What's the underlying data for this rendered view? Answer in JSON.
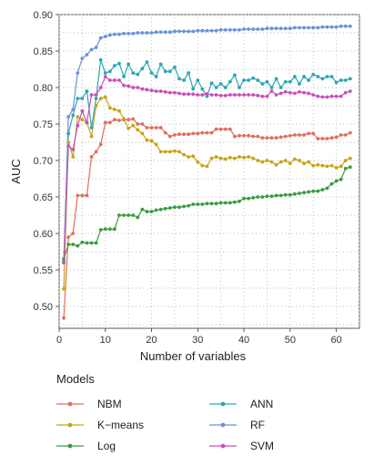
{
  "chart_data": {
    "type": "line",
    "xlabel": "Number of variables",
    "ylabel": "AUC",
    "xlim": [
      0,
      65
    ],
    "ylim": [
      0.47,
      0.9
    ],
    "x_ticks": [
      0,
      10,
      20,
      30,
      40,
      50,
      60
    ],
    "y_ticks": [
      0.5,
      0.55,
      0.6,
      0.65,
      0.7,
      0.75,
      0.8,
      0.85,
      0.9
    ],
    "grid": "dotted",
    "legend_title": "Models",
    "legend_position": "bottom",
    "x": [
      1,
      2,
      3,
      4,
      5,
      6,
      7,
      8,
      9,
      10,
      11,
      12,
      13,
      14,
      15,
      16,
      17,
      18,
      19,
      20,
      21,
      22,
      23,
      24,
      25,
      26,
      27,
      28,
      29,
      30,
      31,
      32,
      33,
      34,
      35,
      36,
      37,
      38,
      39,
      40,
      41,
      42,
      43,
      44,
      45,
      46,
      47,
      48,
      49,
      50,
      51,
      52,
      53,
      54,
      55,
      56,
      57,
      58,
      59,
      60,
      61,
      62,
      63
    ],
    "series": [
      {
        "name": "NBM",
        "color": "#e06e5c",
        "values": [
          0.484,
          0.595,
          0.6,
          0.652,
          0.652,
          0.652,
          0.705,
          0.712,
          0.722,
          0.752,
          0.752,
          0.756,
          0.755,
          0.756,
          0.756,
          0.757,
          0.75,
          0.75,
          0.745,
          0.745,
          0.745,
          0.745,
          0.738,
          0.733,
          0.735,
          0.736,
          0.736,
          0.736,
          0.737,
          0.737,
          0.738,
          0.738,
          0.738,
          0.743,
          0.743,
          0.743,
          0.743,
          0.733,
          0.734,
          0.734,
          0.734,
          0.733,
          0.733,
          0.731,
          0.731,
          0.731,
          0.731,
          0.732,
          0.733,
          0.734,
          0.735,
          0.735,
          0.735,
          0.737,
          0.737,
          0.73,
          0.73,
          0.73,
          0.731,
          0.732,
          0.735,
          0.735,
          0.738
        ]
      },
      {
        "name": "K−means",
        "color": "#c8a415",
        "values": [
          0.524,
          0.725,
          0.705,
          0.76,
          0.756,
          0.752,
          0.733,
          0.775,
          0.785,
          0.787,
          0.772,
          0.77,
          0.768,
          0.757,
          0.744,
          0.748,
          0.742,
          0.737,
          0.728,
          0.727,
          0.722,
          0.712,
          0.712,
          0.712,
          0.713,
          0.712,
          0.708,
          0.705,
          0.706,
          0.698,
          0.693,
          0.692,
          0.703,
          0.705,
          0.703,
          0.702,
          0.704,
          0.703,
          0.705,
          0.704,
          0.705,
          0.703,
          0.7,
          0.698,
          0.7,
          0.698,
          0.694,
          0.698,
          0.7,
          0.696,
          0.702,
          0.7,
          0.696,
          0.698,
          0.693,
          0.694,
          0.693,
          0.692,
          0.693,
          0.69,
          0.692,
          0.7,
          0.703
        ]
      },
      {
        "name": "Log",
        "color": "#3a9b3e",
        "values": [
          0.565,
          0.585,
          0.585,
          0.583,
          0.588,
          0.587,
          0.587,
          0.587,
          0.605,
          0.606,
          0.606,
          0.606,
          0.625,
          0.625,
          0.625,
          0.625,
          0.622,
          0.633,
          0.63,
          0.63,
          0.632,
          0.633,
          0.634,
          0.635,
          0.636,
          0.636,
          0.637,
          0.638,
          0.64,
          0.64,
          0.64,
          0.641,
          0.641,
          0.641,
          0.642,
          0.642,
          0.642,
          0.643,
          0.644,
          0.648,
          0.648,
          0.649,
          0.65,
          0.65,
          0.651,
          0.651,
          0.652,
          0.652,
          0.653,
          0.653,
          0.654,
          0.655,
          0.656,
          0.657,
          0.658,
          0.658,
          0.66,
          0.662,
          0.668,
          0.672,
          0.674,
          0.689,
          0.691
        ]
      },
      {
        "name": "ANN",
        "color": "#2aa7b3",
        "values": [
          0.563,
          0.737,
          0.762,
          0.785,
          0.785,
          0.795,
          0.745,
          0.785,
          0.838,
          0.82,
          0.822,
          0.83,
          0.833,
          0.815,
          0.832,
          0.82,
          0.818,
          0.826,
          0.835,
          0.82,
          0.815,
          0.832,
          0.822,
          0.822,
          0.828,
          0.812,
          0.81,
          0.82,
          0.798,
          0.81,
          0.798,
          0.788,
          0.806,
          0.8,
          0.805,
          0.8,
          0.808,
          0.817,
          0.8,
          0.81,
          0.81,
          0.813,
          0.81,
          0.805,
          0.808,
          0.8,
          0.812,
          0.8,
          0.808,
          0.808,
          0.815,
          0.805,
          0.815,
          0.81,
          0.818,
          0.815,
          0.812,
          0.815,
          0.815,
          0.807,
          0.81,
          0.81,
          0.812
        ]
      },
      {
        "name": "RF",
        "color": "#6b93d6",
        "values": [
          0.56,
          0.76,
          0.77,
          0.82,
          0.84,
          0.845,
          0.852,
          0.855,
          0.868,
          0.87,
          0.872,
          0.873,
          0.873,
          0.874,
          0.874,
          0.874,
          0.875,
          0.875,
          0.875,
          0.875,
          0.876,
          0.876,
          0.876,
          0.876,
          0.877,
          0.877,
          0.877,
          0.877,
          0.877,
          0.878,
          0.878,
          0.878,
          0.878,
          0.878,
          0.879,
          0.879,
          0.879,
          0.879,
          0.879,
          0.88,
          0.88,
          0.88,
          0.88,
          0.88,
          0.881,
          0.881,
          0.881,
          0.881,
          0.881,
          0.881,
          0.882,
          0.882,
          0.882,
          0.882,
          0.882,
          0.882,
          0.883,
          0.883,
          0.883,
          0.883,
          0.884,
          0.884,
          0.884
        ]
      },
      {
        "name": "SVM",
        "color": "#c94fb8",
        "values": [
          0.56,
          0.72,
          0.715,
          0.748,
          0.768,
          0.752,
          0.79,
          0.79,
          0.8,
          0.815,
          0.81,
          0.81,
          0.81,
          0.803,
          0.802,
          0.8,
          0.8,
          0.798,
          0.797,
          0.796,
          0.795,
          0.795,
          0.794,
          0.793,
          0.793,
          0.792,
          0.791,
          0.791,
          0.791,
          0.79,
          0.79,
          0.791,
          0.79,
          0.79,
          0.789,
          0.789,
          0.79,
          0.79,
          0.79,
          0.79,
          0.79,
          0.79,
          0.789,
          0.788,
          0.788,
          0.795,
          0.79,
          0.792,
          0.794,
          0.793,
          0.792,
          0.794,
          0.793,
          0.792,
          0.79,
          0.788,
          0.787,
          0.787,
          0.788,
          0.788,
          0.788,
          0.793,
          0.795
        ]
      }
    ]
  }
}
